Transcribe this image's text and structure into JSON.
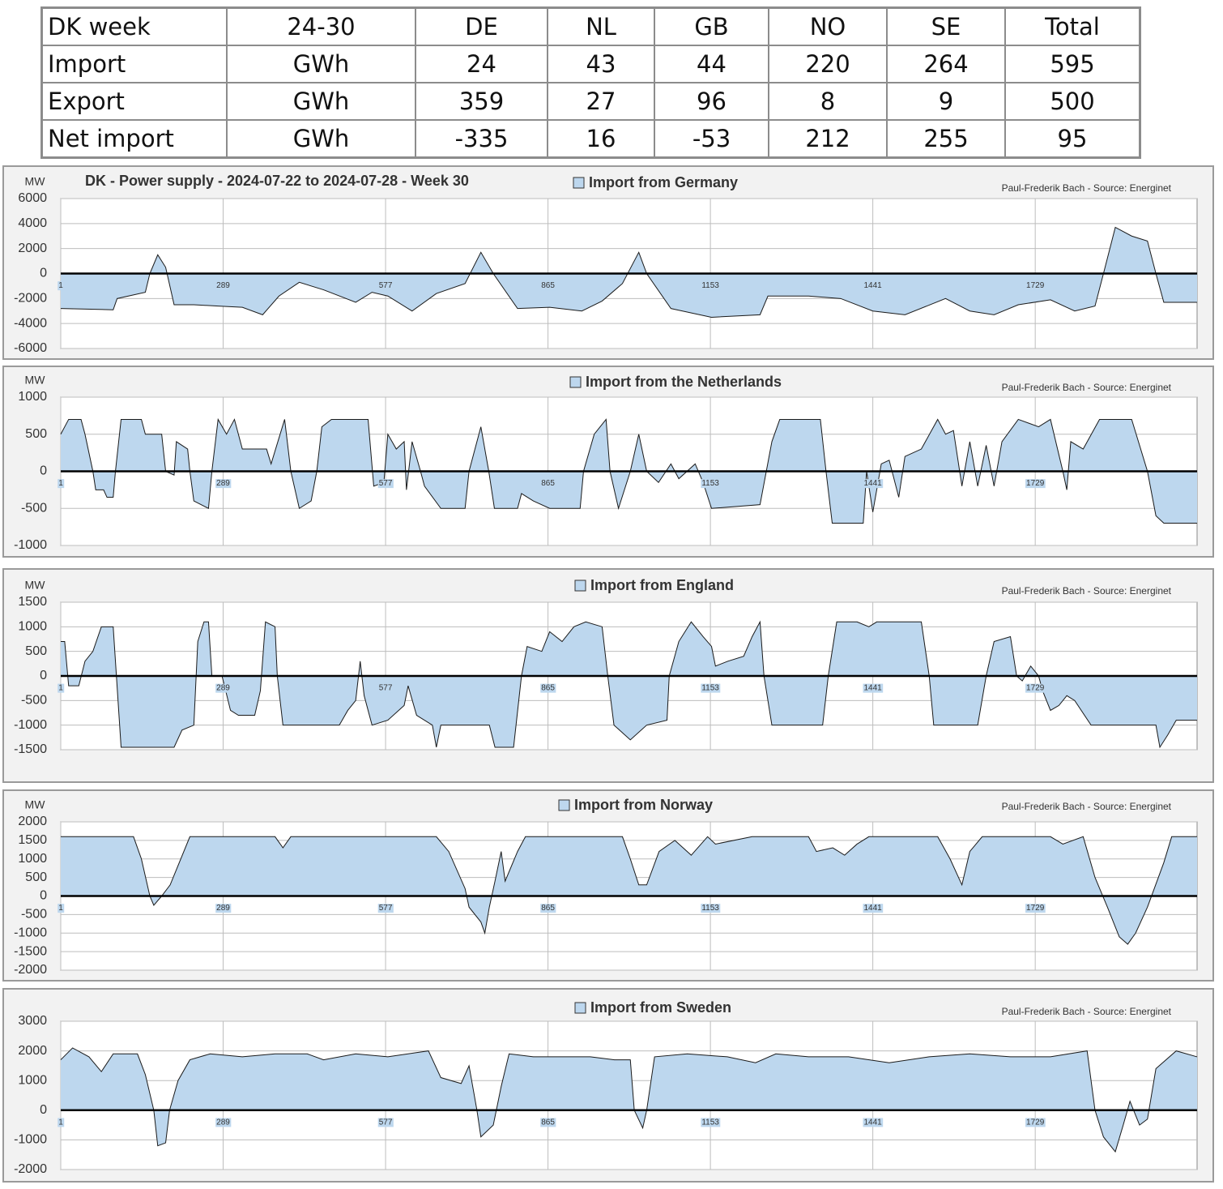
{
  "table": {
    "rows": [
      [
        "DK week",
        "24-30",
        "DE",
        "NL",
        "GB",
        "NO",
        "SE",
        "Total"
      ],
      [
        "Import",
        "GWh",
        24,
        43,
        44,
        220,
        264,
        595
      ],
      [
        "Export",
        "GWh",
        359,
        27,
        96,
        8,
        9,
        500
      ],
      [
        "Net import",
        "GWh",
        -335,
        16,
        -53,
        212,
        255,
        95
      ]
    ]
  },
  "chart_data": [
    {
      "type": "area",
      "title": "DK - Power supply - 2024-07-22 to 2024-07-28 - Week 30",
      "y_label": "MW",
      "credit": "Paul-Frederik Bach - Source: Energinet",
      "x": [
        1,
        94,
        101,
        151,
        159,
        173,
        187,
        202,
        237,
        280,
        323,
        359,
        388,
        424,
        467,
        524,
        553,
        581,
        624,
        667,
        718,
        746,
        768,
        811,
        868,
        925,
        961,
        997,
        1026,
        1040,
        1083,
        1155,
        1241,
        1255,
        1327,
        1384,
        1441,
        1498,
        1570,
        1613,
        1656,
        1699,
        1756,
        1799,
        1835,
        1850,
        1871,
        1900,
        1928,
        1943,
        1957,
        2016
      ],
      "series": [
        {
          "name": "Import from Germany",
          "color": "#bdd7ee",
          "values": [
            -2800,
            -2900,
            -2000,
            -1500,
            0,
            1500,
            500,
            -2500,
            -2500,
            -2600,
            -2700,
            -3300,
            -1800,
            -700,
            -1300,
            -2300,
            -1500,
            -1800,
            -3000,
            -1600,
            -800,
            1700,
            0,
            -2800,
            -2700,
            -3000,
            -2200,
            -800,
            1700,
            0,
            -2800,
            -3500,
            -3300,
            -1800,
            -1800,
            -2000,
            -3000,
            -3300,
            -2000,
            -3000,
            -3300,
            -2500,
            -2100,
            -3000,
            -2600,
            0,
            3700,
            3000,
            2600,
            0,
            -2300,
            -2300
          ]
        }
      ],
      "xlim": [
        1,
        2016
      ],
      "xticks": [
        1,
        289,
        577,
        865,
        1153,
        1441,
        1729
      ],
      "ylim": [
        -6000,
        6000
      ],
      "yticks": [
        6000,
        4000,
        2000,
        0,
        -2000,
        -4000,
        -6000
      ],
      "grid": true
    },
    {
      "type": "area",
      "y_label": "MW",
      "credit": "Paul-Frederik Bach - Source: Energinet",
      "x": [
        1,
        15,
        37,
        44,
        58,
        63,
        77,
        83,
        94,
        98,
        108,
        144,
        151,
        180,
        187,
        202,
        206,
        226,
        230,
        237,
        263,
        269,
        280,
        295,
        309,
        323,
        366,
        374,
        398,
        409,
        424,
        445,
        455,
        464,
        481,
        546,
        556,
        574,
        581,
        596,
        610,
        614,
        624,
        639,
        646,
        675,
        718,
        725,
        746,
        760,
        770,
        811,
        818,
        839,
        868,
        922,
        928,
        947,
        968,
        975,
        990,
        1011,
        1026,
        1040,
        1061,
        1083,
        1097,
        1126,
        1140,
        1155,
        1241,
        1262,
        1276,
        1348,
        1358,
        1369,
        1424,
        1430,
        1441,
        1456,
        1470,
        1487,
        1498,
        1527,
        1556,
        1570,
        1584,
        1599,
        1613,
        1627,
        1642,
        1656,
        1670,
        1699,
        1735,
        1756,
        1778,
        1785,
        1792,
        1814,
        1843,
        1900,
        1928,
        1943,
        1957,
        2016
      ],
      "series": [
        {
          "name": "Import from the Netherlands",
          "color": "#bdd7ee",
          "values": [
            500,
            700,
            700,
            500,
            0,
            -250,
            -250,
            -350,
            -350,
            0,
            700,
            700,
            500,
            500,
            0,
            -50,
            400,
            300,
            0,
            -400,
            -500,
            0,
            700,
            500,
            700,
            300,
            300,
            100,
            700,
            0,
            -500,
            -400,
            0,
            600,
            700,
            700,
            -200,
            -150,
            500,
            300,
            400,
            -250,
            400,
            0,
            -200,
            -500,
            -500,
            0,
            600,
            0,
            -500,
            -500,
            -300,
            -400,
            -500,
            -500,
            0,
            500,
            700,
            0,
            -500,
            0,
            500,
            0,
            -150,
            100,
            -100,
            100,
            -150,
            -500,
            -450,
            400,
            700,
            700,
            0,
            -700,
            -700,
            0,
            -550,
            100,
            150,
            -350,
            200,
            300,
            700,
            500,
            550,
            -200,
            400,
            -200,
            350,
            -200,
            400,
            700,
            600,
            700,
            0,
            -250,
            400,
            300,
            700,
            700,
            0,
            -600,
            -700,
            -700
          ]
        }
      ],
      "xlim": [
        1,
        2016
      ],
      "xticks": [
        1,
        289,
        577,
        865,
        1153,
        1441,
        1729
      ],
      "ylim": [
        -1000,
        1000
      ],
      "yticks": [
        1000,
        500,
        0,
        -500,
        -1000
      ],
      "grid": true
    },
    {
      "type": "area",
      "y_label": "MW",
      "credit": "Paul-Frederik Bach - Source: Energinet",
      "x": [
        1,
        8,
        15,
        33,
        44,
        58,
        73,
        94,
        108,
        202,
        216,
        237,
        244,
        255,
        263,
        269,
        287,
        302,
        316,
        345,
        355,
        364,
        381,
        385,
        395,
        495,
        510,
        524,
        532,
        539,
        553,
        581,
        610,
        617,
        632,
        660,
        667,
        675,
        761,
        771,
        804,
        818,
        828,
        854,
        868,
        890,
        911,
        932,
        961,
        971,
        982,
        1011,
        1040,
        1076,
        1080,
        1097,
        1119,
        1140,
        1155,
        1162,
        1184,
        1212,
        1227,
        1241,
        1248,
        1262,
        1352,
        1362,
        1377,
        1413,
        1434,
        1448,
        1527,
        1541,
        1549,
        1627,
        1642,
        1656,
        1685,
        1696,
        1706,
        1721,
        1735,
        1742,
        1756,
        1771,
        1785,
        1799,
        1828,
        1943,
        1950,
        1964,
        1979,
        2016
      ],
      "series": [
        {
          "name": "Import from England",
          "color": "#bdd7ee",
          "values": [
            700,
            700,
            -200,
            -200,
            300,
            500,
            1000,
            1000,
            -1450,
            -1450,
            -1100,
            -1000,
            700,
            1100,
            1100,
            0,
            0,
            -700,
            -800,
            -800,
            -300,
            1100,
            1000,
            0,
            -1000,
            -1000,
            -700,
            -500,
            300,
            -400,
            -1000,
            -900,
            -600,
            -200,
            -800,
            -1000,
            -1450,
            -1000,
            -1000,
            -1450,
            -1450,
            0,
            600,
            500,
            900,
            700,
            1000,
            1100,
            1000,
            0,
            -1000,
            -1300,
            -1000,
            -900,
            0,
            700,
            1100,
            800,
            600,
            200,
            300,
            400,
            800,
            1100,
            0,
            -1000,
            -1000,
            0,
            1100,
            1100,
            1000,
            1100,
            1100,
            0,
            -1000,
            -1000,
            0,
            700,
            800,
            0,
            -100,
            200,
            0,
            -300,
            -700,
            -600,
            -400,
            -500,
            -1000,
            -1000,
            -1450,
            -1200,
            -900,
            -900
          ]
        }
      ],
      "xlim": [
        1,
        2016
      ],
      "xticks": [
        1,
        289,
        577,
        865,
        1153,
        1441,
        1729
      ],
      "ylim": [
        -1500,
        1500
      ],
      "yticks": [
        1500,
        1000,
        500,
        0,
        -500,
        -1000,
        -1500
      ],
      "grid": true
    },
    {
      "type": "area",
      "y_label": "MW",
      "credit": "Paul-Frederik Bach - Source: Energinet",
      "x": [
        1,
        130,
        144,
        159,
        166,
        180,
        195,
        230,
        381,
        395,
        409,
        667,
        689,
        718,
        725,
        746,
        753,
        761,
        771,
        782,
        789,
        811,
        825,
        997,
        1011,
        1026,
        1040,
        1062,
        1090,
        1119,
        1148,
        1162,
        1227,
        1327,
        1341,
        1370,
        1391,
        1413,
        1434,
        1556,
        1578,
        1599,
        1613,
        1635,
        1756,
        1778,
        1814,
        1835,
        1857,
        1878,
        1893,
        1907,
        1928,
        1957,
        1971,
        2016
      ],
      "series": [
        {
          "name": "Import from Norway",
          "color": "#bdd7ee",
          "values": [
            1600,
            1600,
            1000,
            0,
            -250,
            0,
            300,
            1600,
            1600,
            1300,
            1600,
            1600,
            1200,
            200,
            -300,
            -700,
            -1000,
            -300,
            400,
            1200,
            400,
            1200,
            1600,
            1600,
            1000,
            300,
            300,
            1200,
            1500,
            1100,
            1600,
            1400,
            1600,
            1600,
            1200,
            1300,
            1100,
            1400,
            1600,
            1600,
            1000,
            300,
            1200,
            1600,
            1600,
            1400,
            1600,
            500,
            -300,
            -1100,
            -1300,
            -1000,
            -300,
            900,
            1600,
            1600
          ]
        }
      ],
      "xlim": [
        1,
        2016
      ],
      "xticks": [
        1,
        289,
        577,
        865,
        1153,
        1441,
        1729
      ],
      "ylim": [
        -2000,
        2000
      ],
      "yticks": [
        2000,
        1500,
        1000,
        500,
        0,
        -500,
        -1000,
        -1500,
        -2000
      ],
      "grid": true
    },
    {
      "type": "area",
      "credit": "Paul-Frederik Bach - Source: Energinet",
      "x": [
        1,
        22,
        51,
        73,
        94,
        137,
        151,
        166,
        173,
        187,
        194,
        209,
        230,
        266,
        323,
        381,
        438,
        467,
        524,
        581,
        653,
        675,
        711,
        725,
        739,
        746,
        768,
        782,
        796,
        839,
        940,
        983,
        1011,
        1018,
        1033,
        1040,
        1054,
        1112,
        1183,
        1233,
        1269,
        1327,
        1398,
        1470,
        1541,
        1613,
        1685,
        1756,
        1821,
        1835,
        1850,
        1871,
        1885,
        1897,
        1914,
        1928,
        1943,
        1979,
        2016
      ],
      "series": [
        {
          "name": "Import from Sweden",
          "color": "#bdd7ee",
          "values": [
            1700,
            2100,
            1800,
            1300,
            1900,
            1900,
            1200,
            0,
            -1200,
            -1100,
            0,
            1000,
            1700,
            1900,
            1800,
            1900,
            1900,
            1700,
            1900,
            1800,
            2000,
            1100,
            900,
            1500,
            0,
            -900,
            -500,
            800,
            1900,
            1800,
            1800,
            1700,
            1700,
            0,
            -600,
            0,
            1800,
            1900,
            1800,
            1600,
            1900,
            1800,
            1800,
            1600,
            1800,
            1900,
            1800,
            1800,
            2000,
            0,
            -900,
            -1400,
            -500,
            300,
            -500,
            -300,
            1400,
            2000,
            1800
          ]
        }
      ],
      "xlim": [
        1,
        2016
      ],
      "xticks": [
        1,
        289,
        577,
        865,
        1153,
        1441,
        1729
      ],
      "ylim": [
        -2000,
        3000
      ],
      "yticks": [
        3000,
        2000,
        1000,
        0,
        -1000,
        -2000
      ],
      "grid": true
    }
  ]
}
